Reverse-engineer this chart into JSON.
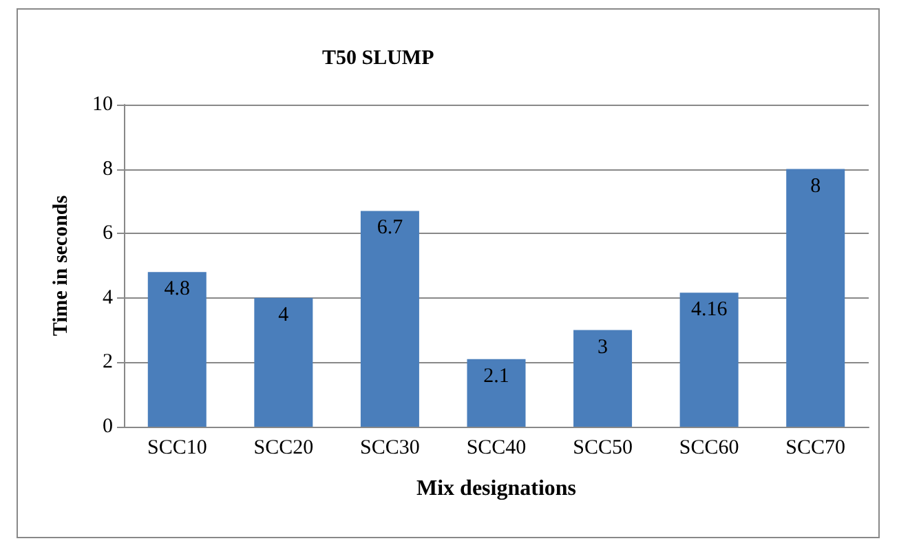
{
  "chart_data": {
    "type": "bar",
    "title": "T50 SLUMP",
    "xlabel": "Mix designations",
    "ylabel": "Time in seconds",
    "categories": [
      "SCC10",
      "SCC20",
      "SCC30",
      "SCC40",
      "SCC50",
      "SCC60",
      "SCC70"
    ],
    "values": [
      4.8,
      4,
      6.7,
      2.1,
      3,
      4.16,
      8
    ],
    "color": "#4a7ebb",
    "ylim": [
      0,
      10
    ],
    "yticks": [
      0,
      2,
      4,
      6,
      8,
      10
    ],
    "grid": "y",
    "data_labels": true
  }
}
